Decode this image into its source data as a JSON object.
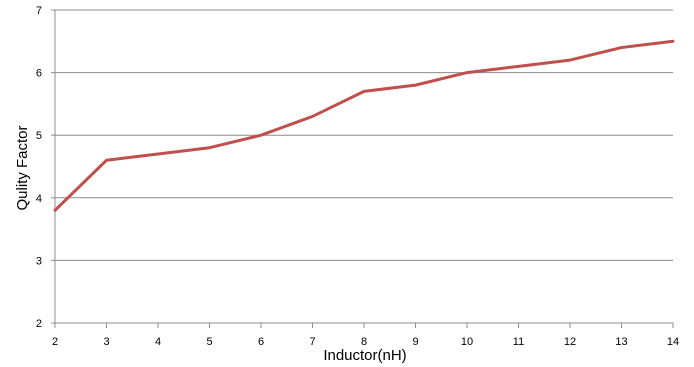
{
  "chart_data": {
    "type": "line",
    "title": "",
    "xlabel": "Inductor(nH)",
    "ylabel": "Qulity Factor",
    "x": [
      2,
      3,
      4,
      5,
      6,
      7,
      8,
      9,
      10,
      11,
      12,
      13,
      14
    ],
    "series": [
      {
        "values": [
          3.8,
          4.6,
          4.7,
          4.8,
          5.0,
          5.3,
          5.7,
          5.8,
          6.0,
          6.1,
          6.2,
          6.4,
          6.5
        ],
        "color": "#c0504d"
      }
    ],
    "xlim": [
      2,
      14
    ],
    "ylim": [
      2,
      7
    ],
    "xticks": [
      "2",
      "3",
      "4",
      "5",
      "6",
      "7",
      "8",
      "9",
      "10",
      "11",
      "12",
      "13",
      "14"
    ],
    "yticks": [
      "2",
      "3",
      "4",
      "5",
      "6",
      "7"
    ],
    "grid": "horizontal",
    "legend": "none",
    "gridline_color": "#8c8c8c",
    "axis_color": "#8c8c8c"
  }
}
